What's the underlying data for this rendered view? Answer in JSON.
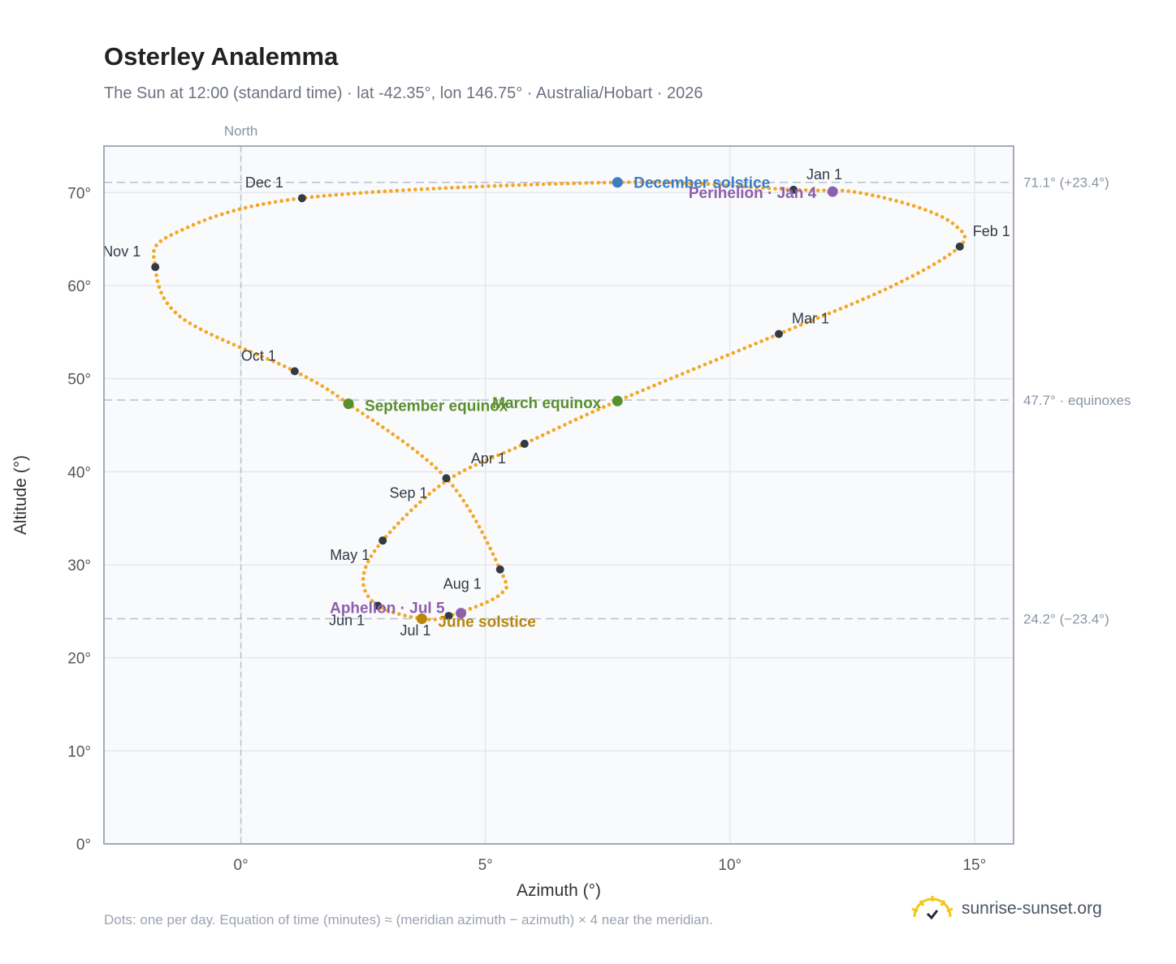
{
  "title": "Osterley Analemma",
  "subtitle": "The Sun at 12:00 (standard time) · lat -42.35°, lon 146.75° · Australia/Hobart · 2026",
  "footnote": "Dots: one per day. Equation of time (minutes) ≈ (meridian azimuth − azimuth) × 4 near the meridian.",
  "brand": {
    "name": "sunrise-sunset.org",
    "icon": "sun-logo-icon"
  },
  "colors": {
    "curve": "#f5a623",
    "month_marker": "#333a44",
    "solstice_dec": "#3b7ec2",
    "solstice_jun": "#b8860b",
    "equinox": "#5a8f2e",
    "apsis": "#8e5fad",
    "grid": "#e5e7eb",
    "reference_line": "#b8c0cb",
    "axis_text": "#555555",
    "frame": "#9aa3b0",
    "plot_bg": "#f8fafc"
  },
  "chart_data": {
    "type": "scatter",
    "xlabel": "Azimuth (°)",
    "ylabel": "Altitude (°)",
    "xlim": [
      -2.8,
      15.8
    ],
    "ylim": [
      0,
      75
    ],
    "xticks": [
      {
        "value": 0,
        "label": "0°"
      },
      {
        "value": 5,
        "label": "5°"
      },
      {
        "value": 10,
        "label": "10°"
      },
      {
        "value": 15,
        "label": "15°"
      }
    ],
    "yticks": [
      {
        "value": 0,
        "label": "0°"
      },
      {
        "value": 10,
        "label": "10°"
      },
      {
        "value": 20,
        "label": "20°"
      },
      {
        "value": 30,
        "label": "30°"
      },
      {
        "value": 40,
        "label": "40°"
      },
      {
        "value": 50,
        "label": "50°"
      },
      {
        "value": 60,
        "label": "60°"
      },
      {
        "value": 70,
        "label": "70°"
      }
    ],
    "grid": true,
    "meridian_line": {
      "x": 0,
      "label": "North"
    },
    "reference_lines": [
      {
        "y": 71.1,
        "label": "71.1° (+23.4°)"
      },
      {
        "y": 47.7,
        "label": "47.7° · equinoxes"
      },
      {
        "y": 24.2,
        "label": "24.2° (−23.4°)"
      }
    ],
    "daily_path": {
      "description_points_per_day": 1,
      "key_points": [
        [
          11.3,
          70.3
        ],
        [
          12.5,
          70.1
        ],
        [
          13.8,
          68.5
        ],
        [
          14.6,
          66.5
        ],
        [
          14.7,
          64.2
        ],
        [
          13.3,
          59.9
        ],
        [
          11.0,
          54.8
        ],
        [
          7.7,
          47.6
        ],
        [
          5.8,
          43.0
        ],
        [
          4.2,
          39.0
        ],
        [
          2.9,
          32.6
        ],
        [
          2.5,
          28.5
        ],
        [
          2.8,
          25.6
        ],
        [
          3.7,
          24.2
        ],
        [
          4.25,
          24.5
        ],
        [
          5.3,
          26.8
        ],
        [
          5.3,
          29.5
        ],
        [
          4.2,
          39.3
        ],
        [
          2.2,
          47.3
        ],
        [
          1.1,
          50.8
        ],
        [
          -1.2,
          56.5
        ],
        [
          -1.75,
          62.0
        ],
        [
          -1.4,
          65.5
        ],
        [
          1.25,
          69.4
        ],
        [
          7.7,
          71.1
        ],
        [
          11.3,
          70.3
        ]
      ]
    },
    "month_markers": [
      {
        "label": "Jan 1",
        "x": 11.3,
        "y": 70.3
      },
      {
        "label": "Feb 1",
        "x": 14.7,
        "y": 64.2
      },
      {
        "label": "Mar 1",
        "x": 11.0,
        "y": 54.8
      },
      {
        "label": "Apr 1",
        "x": 5.8,
        "y": 43.0
      },
      {
        "label": "May 1",
        "x": 2.9,
        "y": 32.6
      },
      {
        "label": "Jun 1",
        "x": 2.8,
        "y": 25.6
      },
      {
        "label": "Jul 1",
        "x": 4.25,
        "y": 24.5
      },
      {
        "label": "Aug 1",
        "x": 5.3,
        "y": 29.5
      },
      {
        "label": "Sep 1",
        "x": 4.2,
        "y": 39.3
      },
      {
        "label": "Oct 1",
        "x": 1.1,
        "y": 50.8
      },
      {
        "label": "Nov 1",
        "x": -1.75,
        "y": 62.0
      },
      {
        "label": "Dec 1",
        "x": 1.25,
        "y": 69.4
      }
    ],
    "events": [
      {
        "label": "December solstice",
        "x": 7.7,
        "y": 71.1,
        "kind": "solstice_dec"
      },
      {
        "label": "June solstice",
        "x": 3.7,
        "y": 24.2,
        "kind": "solstice_jun"
      },
      {
        "label": "March equinox",
        "x": 7.7,
        "y": 47.6,
        "kind": "equinox"
      },
      {
        "label": "September equinox",
        "x": 2.2,
        "y": 47.3,
        "kind": "equinox"
      },
      {
        "label": "Perihelion · Jan 4",
        "x": 12.1,
        "y": 70.1,
        "kind": "apsis"
      },
      {
        "label": "Aphelion · Jul 5",
        "x": 4.5,
        "y": 24.8,
        "kind": "apsis"
      }
    ]
  }
}
